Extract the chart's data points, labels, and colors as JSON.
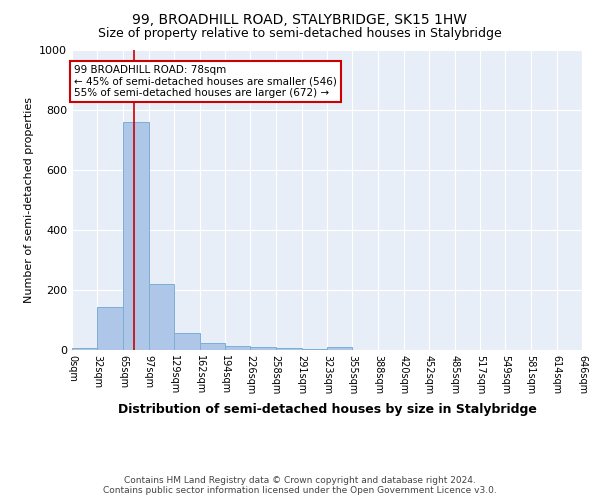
{
  "title": "99, BROADHILL ROAD, STALYBRIDGE, SK15 1HW",
  "subtitle": "Size of property relative to semi-detached houses in Stalybridge",
  "xlabel": "Distribution of semi-detached houses by size in Stalybridge",
  "ylabel": "Number of semi-detached properties",
  "bin_edges": [
    0,
    32,
    65,
    97,
    129,
    162,
    194,
    226,
    258,
    291,
    323,
    355,
    388,
    420,
    452,
    485,
    517,
    549,
    581,
    614,
    646
  ],
  "bin_counts": [
    8,
    145,
    760,
    220,
    57,
    25,
    13,
    10,
    8,
    5,
    10,
    0,
    0,
    0,
    0,
    0,
    0,
    0,
    0,
    0
  ],
  "bar_color": "#aec6e8",
  "bar_edge_color": "#7bafd4",
  "property_size": 78,
  "red_line_color": "#cc0000",
  "ylim": [
    0,
    1000
  ],
  "annotation_text_line1": "99 BROADHILL ROAD: 78sqm",
  "annotation_text_line2": "← 45% of semi-detached houses are smaller (546)",
  "annotation_text_line3": "55% of semi-detached houses are larger (672) →",
  "annotation_box_facecolor": "#ffffff",
  "annotation_box_edgecolor": "#cc0000",
  "footer_line1": "Contains HM Land Registry data © Crown copyright and database right 2024.",
  "footer_line2": "Contains public sector information licensed under the Open Government Licence v3.0.",
  "background_color": "#e8eef7",
  "grid_color": "#ffffff",
  "tick_labels": [
    "0sqm",
    "32sqm",
    "65sqm",
    "97sqm",
    "129sqm",
    "162sqm",
    "194sqm",
    "226sqm",
    "258sqm",
    "291sqm",
    "323sqm",
    "355sqm",
    "388sqm",
    "420sqm",
    "452sqm",
    "485sqm",
    "517sqm",
    "549sqm",
    "581sqm",
    "614sqm",
    "646sqm"
  ],
  "title_fontsize": 10,
  "subtitle_fontsize": 9,
  "ylabel_fontsize": 8,
  "xlabel_fontsize": 9,
  "tick_fontsize": 7,
  "annotation_fontsize": 7.5,
  "footer_fontsize": 6.5
}
